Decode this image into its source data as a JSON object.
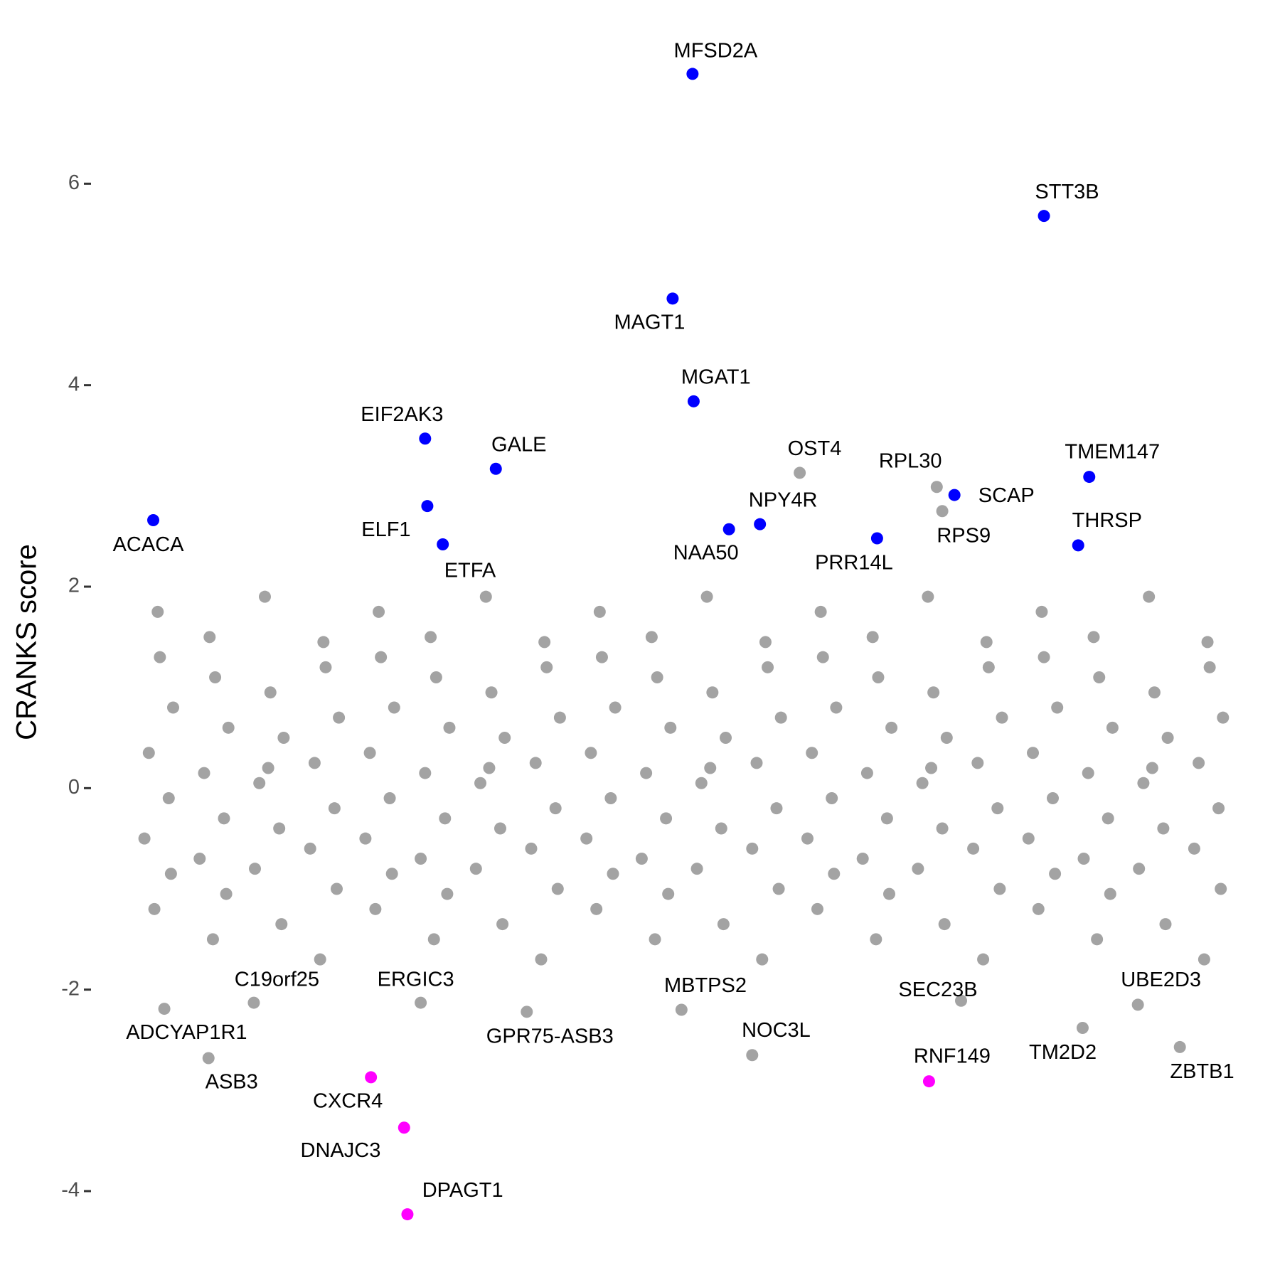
{
  "chart_data": {
    "type": "scatter",
    "y_label": "CRANKS score",
    "xlim": [
      0,
      100
    ],
    "ylim": [
      -4.6,
      7.4
    ],
    "yticks": [
      -4,
      -2,
      0,
      2,
      4,
      6
    ],
    "series": [
      {
        "color": "#a3a3a3",
        "x": [
          2.5,
          3.7,
          1.5,
          3.3,
          1.1,
          3.5,
          2,
          2.3,
          7.5,
          8.7,
          6.5,
          8.3,
          6.1,
          8.5,
          7,
          7.3,
          12.5,
          13.7,
          11.5,
          13.3,
          11.1,
          13.5,
          12,
          12.3,
          17.5,
          18.7,
          16.5,
          18.3,
          16.1,
          18.5,
          17,
          17.3,
          22.5,
          23.7,
          21.5,
          23.3,
          21.1,
          23.5,
          22,
          22.3,
          27.5,
          28.7,
          26.5,
          28.3,
          26.1,
          28.5,
          27,
          27.3,
          32.5,
          33.7,
          31.5,
          33.3,
          31.1,
          33.5,
          32,
          32.3,
          37.5,
          38.7,
          36.5,
          38.3,
          36.1,
          38.5,
          37,
          37.3,
          42.5,
          43.7,
          41.5,
          43.3,
          41.1,
          43.5,
          42,
          42.3,
          47.5,
          48.7,
          46.5,
          48.3,
          46.1,
          48.5,
          47,
          47.3,
          52.5,
          53.7,
          51.5,
          53.3,
          51.1,
          53.5,
          52,
          52.3,
          57.5,
          58.7,
          56.5,
          58.3,
          56.1,
          58.5,
          57,
          57.3,
          62.5,
          63.7,
          61.5,
          63.3,
          61.1,
          63.5,
          62,
          62.3,
          67.5,
          68.7,
          66.5,
          68.3,
          66.1,
          68.5,
          67,
          67.3,
          72.5,
          73.7,
          71.5,
          73.3,
          71.1,
          73.5,
          72,
          72.3,
          77.5,
          78.7,
          76.5,
          78.3,
          76.1,
          78.5,
          77,
          77.3,
          82.5,
          83.7,
          81.5,
          83.3,
          81.1,
          83.5,
          82,
          82.3,
          87.5,
          88.7,
          86.5,
          88.3,
          86.1,
          88.5,
          87,
          87.3,
          92.5,
          93.7,
          91.5,
          93.3,
          91.1,
          93.5,
          92,
          92.3,
          97.5,
          98.7,
          96.5,
          98.3,
          96.1,
          98.5,
          97,
          97.3
        ],
        "values": [
          1.3,
          0.8,
          0.35,
          -0.1,
          -0.5,
          -0.85,
          -1.2,
          1.75,
          1.1,
          0.6,
          0.15,
          -0.3,
          -0.7,
          -1.05,
          1.5,
          -1.5,
          0.95,
          0.5,
          0.05,
          -0.4,
          -0.8,
          -1.35,
          1.9,
          0.2,
          1.2,
          0.7,
          0.25,
          -0.2,
          -0.6,
          -1.0,
          -1.7,
          1.45,
          1.3,
          0.8,
          0.35,
          -0.1,
          -0.5,
          -0.85,
          -1.2,
          1.75,
          1.1,
          0.6,
          0.15,
          -0.3,
          -0.7,
          -1.05,
          1.5,
          -1.5,
          0.95,
          0.5,
          0.05,
          -0.4,
          -0.8,
          -1.35,
          1.9,
          0.2,
          1.2,
          0.7,
          0.25,
          -0.2,
          -0.6,
          -1.0,
          -1.7,
          1.45,
          1.3,
          0.8,
          0.35,
          -0.1,
          -0.5,
          -0.85,
          -1.2,
          1.75,
          1.1,
          0.6,
          0.15,
          -0.3,
          -0.7,
          -1.05,
          1.5,
          -1.5,
          0.95,
          0.5,
          0.05,
          -0.4,
          -0.8,
          -1.35,
          1.9,
          0.2,
          1.2,
          0.7,
          0.25,
          -0.2,
          -0.6,
          -1.0,
          -1.7,
          1.45,
          1.3,
          0.8,
          0.35,
          -0.1,
          -0.5,
          -0.85,
          -1.2,
          1.75,
          1.1,
          0.6,
          0.15,
          -0.3,
          -0.7,
          -1.05,
          1.5,
          -1.5,
          0.95,
          0.5,
          0.05,
          -0.4,
          -0.8,
          -1.35,
          1.9,
          0.2,
          1.2,
          0.7,
          0.25,
          -0.2,
          -0.6,
          -1.0,
          -1.7,
          1.45,
          1.3,
          0.8,
          0.35,
          -0.1,
          -0.5,
          -0.85,
          -1.2,
          1.75,
          1.1,
          0.6,
          0.15,
          -0.3,
          -0.7,
          -1.05,
          1.5,
          -1.5,
          0.95,
          0.5,
          0.05,
          -0.4,
          -0.8,
          -1.35,
          1.9,
          0.2,
          1.2,
          0.7,
          0.25,
          -0.2,
          -0.6,
          -1.0,
          -1.7,
          1.45
        ]
      },
      {
        "color": "#a3a3a3",
        "labels": [
          "OST4",
          "RPL30",
          "RPS9",
          "ADCYAP1R1",
          "ASB3",
          "C19orf25",
          "ERGIC3",
          "GPR75-ASB3",
          "MBTPS2",
          "NOC3L",
          "SEC23B",
          "TM2D2",
          "UBE2D3",
          "ZBTB1"
        ],
        "x": [
          60.4,
          72.8,
          73.3,
          2.9,
          6.9,
          11,
          26.1,
          35.7,
          49.7,
          56.1,
          75,
          86,
          91,
          94.8
        ],
        "values": [
          3.13,
          2.99,
          2.75,
          -2.19,
          -2.68,
          -2.13,
          -2.13,
          -2.22,
          -2.2,
          -2.65,
          -2.11,
          -2.38,
          -2.15,
          -2.57
        ]
      },
      {
        "color": "#0000ff",
        "labels": [
          "MFSD2A",
          "STT3B",
          "MAGT1",
          "MGAT1",
          "EIF2AK3",
          "GALE",
          "TMEM147",
          "SCAP",
          "ELF1",
          "ACACA",
          "NPY4R",
          "NAA50",
          "PRR14L",
          "ETFA",
          "THRSP"
        ],
        "x": [
          50.7,
          82.5,
          48.9,
          50.8,
          26.5,
          32.9,
          86.6,
          74.4,
          26.7,
          1.9,
          56.8,
          54,
          67.4,
          28.1,
          85.6
        ],
        "values": [
          7.09,
          5.68,
          4.86,
          3.84,
          3.47,
          3.17,
          3.09,
          2.91,
          2.8,
          2.66,
          2.62,
          2.57,
          2.48,
          2.42,
          2.41
        ]
      },
      {
        "color": "#ff00ff",
        "labels": [
          "CXCR4",
          "DNAJC3",
          "RNF149",
          "DPAGT1"
        ],
        "x": [
          21.6,
          24.6,
          72.1,
          24.9
        ],
        "values": [
          -2.87,
          -3.37,
          -2.91,
          -4.23
        ]
      }
    ]
  }
}
